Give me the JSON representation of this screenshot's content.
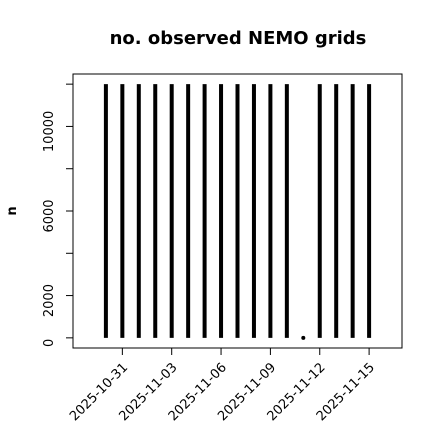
{
  "chart_data": {
    "type": "histogram-lines",
    "title": "no. observed NEMO grids",
    "y_label": "n",
    "x": [
      "2025-10-30",
      "2025-10-31",
      "2025-11-01",
      "2025-11-02",
      "2025-11-03",
      "2025-11-04",
      "2025-11-05",
      "2025-11-06",
      "2025-11-07",
      "2025-11-08",
      "2025-11-09",
      "2025-11-10",
      "2025-11-11",
      "2025-11-12",
      "2025-11-13",
      "2025-11-14",
      "2025-11-15"
    ],
    "values": [
      12000,
      12000,
      12000,
      12000,
      12000,
      12000,
      12000,
      12000,
      12000,
      12000,
      12000,
      12000,
      0,
      12000,
      12000,
      12000,
      12000
    ],
    "color": "#000000",
    "xlim": [
      "2025-10-28",
      "2025-11-17"
    ],
    "xticks": [
      "2025-10-31",
      "2025-11-03",
      "2025-11-06",
      "2025-11-09",
      "2025-11-12",
      "2025-11-15"
    ],
    "ylim": [
      -480,
      12480
    ],
    "yticks": [
      0,
      2000,
      6000,
      10000
    ],
    "yminorticks": [
      4000,
      8000,
      12000
    ]
  }
}
